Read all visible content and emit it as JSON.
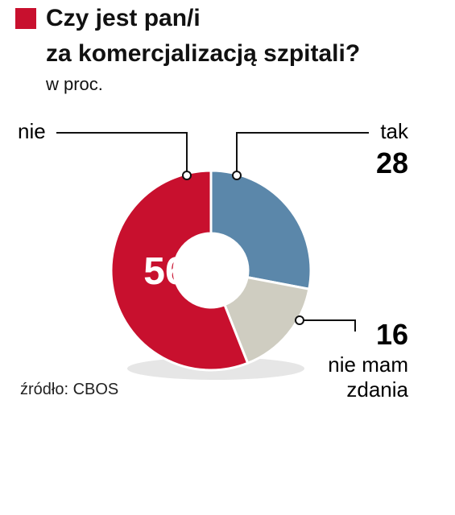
{
  "colors": {
    "accent": "#c8102e",
    "tak": "#5b87aa",
    "nie_mam_zdania": "#cfcdc1",
    "nie": "#c8102e"
  },
  "header": {
    "title_line1": "Czy jest pan/i",
    "title_line2": "za komercjalizacją szpitali?",
    "subtitle": "w proc."
  },
  "source": "źródło: CBOS",
  "chart_data": {
    "type": "pie",
    "title": "Czy jest pan/i za komercjalizacją szpitali?",
    "subtitle": "w proc.",
    "variant": "donut",
    "slices": [
      {
        "label": "tak",
        "value": 28,
        "color": "#5b87aa"
      },
      {
        "label": "nie mam zdania",
        "value": 16,
        "color": "#cfcdc1"
      },
      {
        "label": "nie",
        "value": 56,
        "color": "#c8102e"
      }
    ],
    "labels_display": {
      "tak": [
        "tak"
      ],
      "nie_mam_zdania": [
        "nie mam",
        "zdania"
      ],
      "nie": [
        "nie"
      ]
    },
    "value_display": [
      "28",
      "16",
      "56"
    ]
  }
}
